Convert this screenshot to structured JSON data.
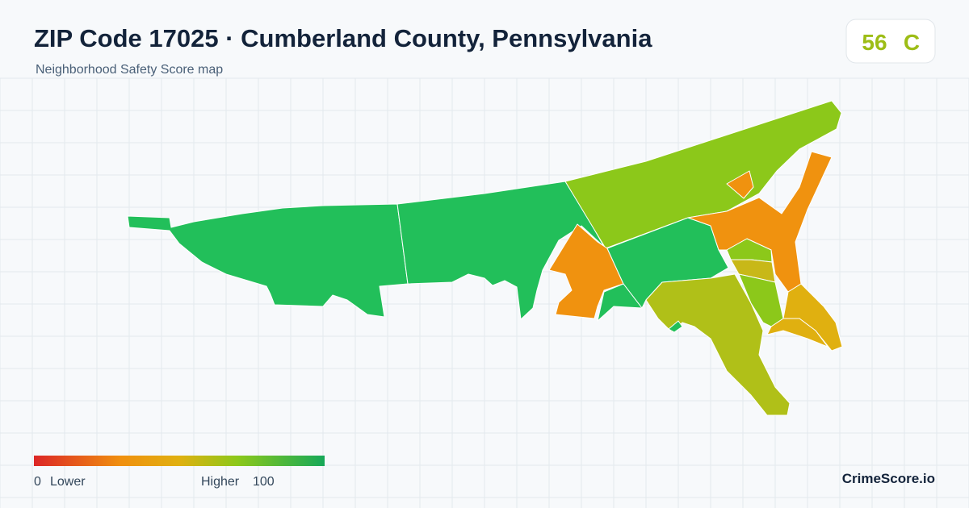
{
  "header": {
    "title": "ZIP Code 17025 · Cumberland County, Pennsylvania",
    "subtitle": "Neighborhood Safety Score map"
  },
  "score": {
    "value": "56",
    "grade": "C"
  },
  "legend": {
    "min": "0",
    "min_label": "Lower",
    "max_label": "Higher",
    "max": "100"
  },
  "brand": "CrimeScore.io"
}
